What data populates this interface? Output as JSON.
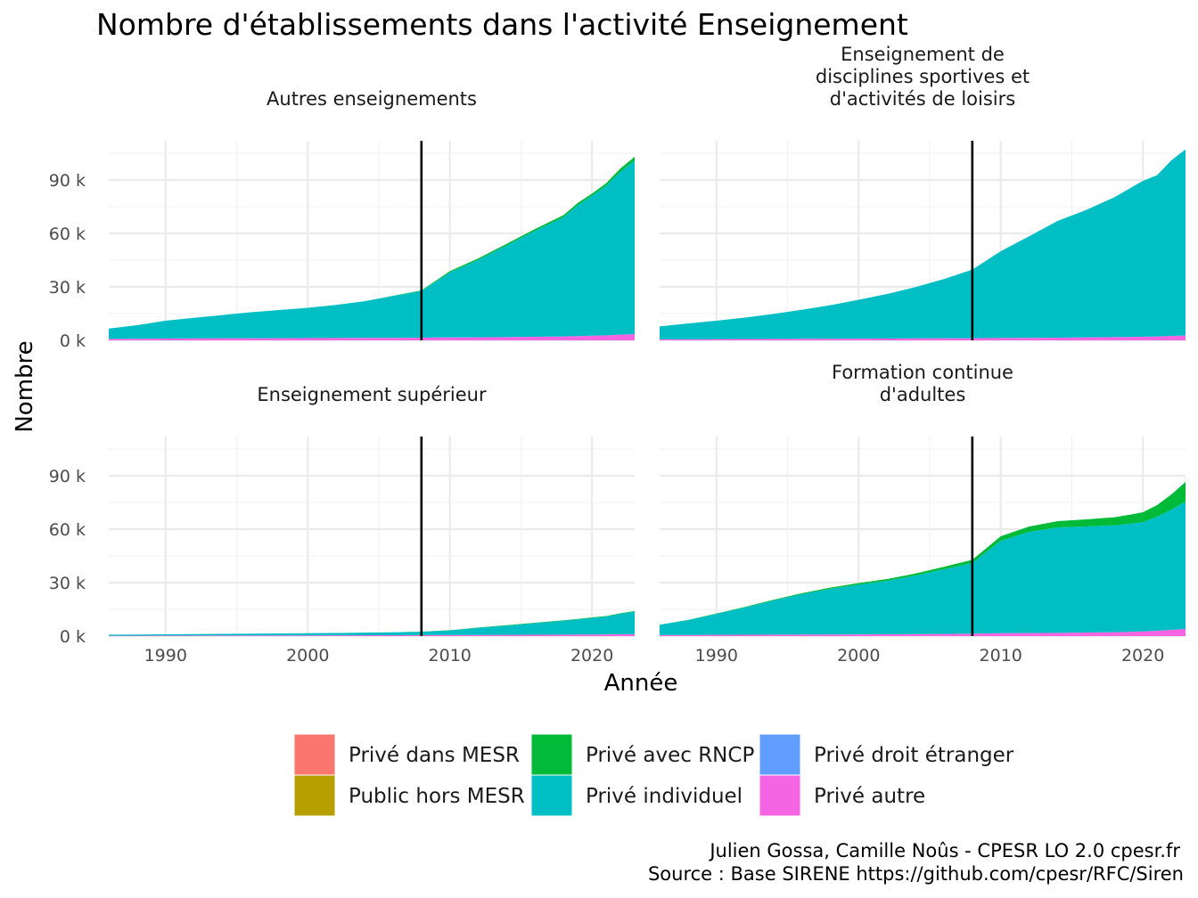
{
  "chart_data": {
    "type": "area",
    "title": "Nombre d'établissements dans l'activité Enseignement",
    "xlabel": "Année",
    "ylabel": "Nombre",
    "xlim": [
      1986,
      2023
    ],
    "ylim": [
      0,
      112000
    ],
    "x_ticks": [
      1990,
      2000,
      2010,
      2020
    ],
    "x_tick_labels": [
      "1990",
      "2000",
      "2010",
      "2020"
    ],
    "y_ticks": [
      0,
      30000,
      60000,
      90000
    ],
    "y_tick_labels": [
      "0 k",
      "30 k",
      "60 k",
      "90 k"
    ],
    "vline_x": 2008,
    "grid": true,
    "legend_position": "bottom",
    "legend": [
      {
        "name": "Privé dans MESR",
        "color": "#F8766D"
      },
      {
        "name": "Public hors MESR",
        "color": "#B79F00"
      },
      {
        "name": "Privé avec RNCP",
        "color": "#00BA38"
      },
      {
        "name": "Privé individuel",
        "color": "#00BFC4"
      },
      {
        "name": "Privé droit étranger",
        "color": "#619CFF"
      },
      {
        "name": "Privé autre",
        "color": "#F564E3"
      }
    ],
    "stack_order": [
      "Privé autre",
      "Privé individuel",
      "Privé avec RNCP"
    ],
    "x": [
      1986,
      1988,
      1990,
      1992,
      1994,
      1996,
      1998,
      2000,
      2002,
      2004,
      2006,
      2008,
      2010,
      2012,
      2014,
      2016,
      2018,
      2019,
      2020,
      2021,
      2022,
      2023
    ],
    "panels": [
      {
        "title_lines": [
          "Autres enseignements"
        ],
        "series": [
          {
            "name": "Privé autre",
            "values": [
              800,
              900,
              1000,
              1050,
              1100,
              1150,
              1200,
              1250,
              1300,
              1350,
              1400,
              1500,
              1600,
              1700,
              1800,
              2000,
              2200,
              2400,
              2600,
              2800,
              3200,
              3500
            ]
          },
          {
            "name": "Privé individuel",
            "values": [
              5800,
              7600,
              10000,
              11600,
              13100,
              14600,
              15800,
              17000,
              18600,
              20600,
              23500,
              26200,
              36500,
              43500,
              51500,
              59500,
              67000,
              73500,
              78500,
              84000,
              91500,
              97500
            ]
          },
          {
            "name": "Privé avec RNCP",
            "values": [
              0,
              0,
              0,
              0,
              0,
              0,
              0,
              0,
              0,
              0,
              100,
              300,
              700,
              800,
              900,
              1000,
              1100,
              1200,
              1300,
              1400,
              1800,
              2000
            ]
          }
        ]
      },
      {
        "title_lines": [
          "Enseignement de",
          "disciplines sportives et",
          "d'activités de loisirs"
        ],
        "series": [
          {
            "name": "Privé autre",
            "values": [
              600,
              650,
              700,
              750,
              800,
              850,
              900,
              950,
              1000,
              1050,
              1100,
              1200,
              1300,
              1400,
              1500,
              1600,
              1800,
              1900,
              2000,
              2200,
              2500,
              2700
            ]
          },
          {
            "name": "Privé individuel",
            "values": [
              7200,
              8800,
              10300,
              12000,
              14000,
              16300,
              18800,
              21800,
              25000,
              28800,
              33300,
              38500,
              48700,
              57000,
              65500,
              71500,
              78500,
              83000,
              87500,
              90500,
              98500,
              104500
            ]
          },
          {
            "name": "Privé avec RNCP",
            "values": [
              0,
              0,
              0,
              0,
              0,
              0,
              0,
              0,
              0,
              0,
              0,
              0,
              0,
              0,
              0,
              0,
              0,
              0,
              0,
              0,
              0,
              0
            ]
          }
        ]
      },
      {
        "title_lines": [
          "Enseignement supérieur"
        ],
        "series": [
          {
            "name": "Privé autre",
            "values": [
              200,
              250,
              300,
              320,
              350,
              380,
              400,
              420,
              450,
              480,
              500,
              550,
              600,
              650,
              700,
              750,
              800,
              850,
              900,
              950,
              1000,
              1050
            ]
          },
          {
            "name": "Privé individuel",
            "values": [
              600,
              650,
              700,
              800,
              900,
              1000,
              1100,
              1200,
              1300,
              1450,
              1600,
              1900,
              2600,
              4000,
              5200,
              6500,
              7800,
              8500,
              9300,
              10000,
              11500,
              12700
            ]
          },
          {
            "name": "Privé avec RNCP",
            "values": [
              0,
              0,
              0,
              0,
              0,
              0,
              0,
              0,
              0,
              0,
              0,
              50,
              100,
              150,
              200,
              250,
              300,
              300,
              300,
              300,
              300,
              300
            ]
          }
        ]
      },
      {
        "title_lines": [
          "Formation continue",
          "d'adultes"
        ],
        "series": [
          {
            "name": "Privé autre",
            "values": [
              600,
              650,
              700,
              750,
              800,
              850,
              900,
              950,
              1000,
              1100,
              1200,
              1400,
              1600,
              1700,
              1800,
              2000,
              2200,
              2400,
              2600,
              3000,
              3500,
              4000
            ]
          },
          {
            "name": "Privé individuel",
            "values": [
              5800,
              8300,
              11800,
              15300,
              19200,
              22700,
              25600,
              27900,
              30000,
              32900,
              36300,
              39600,
              51900,
              56800,
              59200,
              59500,
              60000,
              60600,
              61400,
              64000,
              67500,
              71500
            ]
          },
          {
            "name": "Privé avec RNCP",
            "values": [
              0,
              100,
              200,
              300,
              400,
              500,
              700,
              900,
              1000,
              1100,
              1400,
              1800,
              2500,
              3000,
              3500,
              4000,
              4500,
              5000,
              5500,
              6500,
              8500,
              11000
            ]
          }
        ]
      }
    ]
  },
  "caption": {
    "line1": "Julien Gossa, Camille Noûs - CPESR LO 2.0 cpesr.fr",
    "line2": "Source : Base SIRENE https://github.com/cpesr/RFC/Siren"
  }
}
